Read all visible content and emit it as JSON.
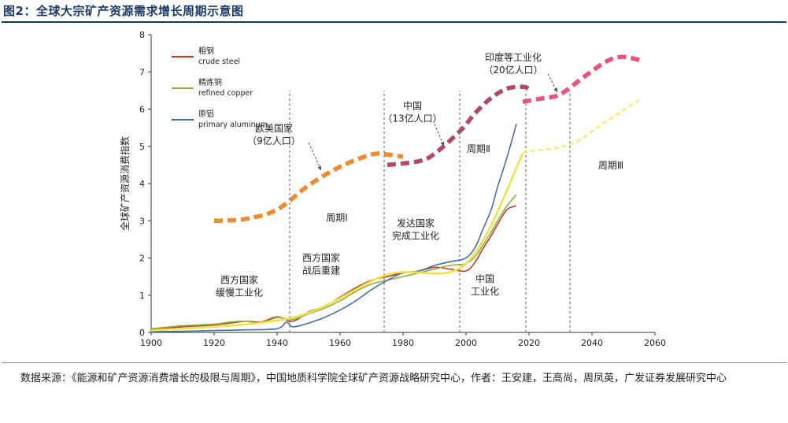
{
  "title": "图2：全球大宗矿产资源需求增长周期示意图",
  "source": "数据来源：《能源和矿产资源消费增长的极限与周期》，中国地质科学院全球矿产资源战略研究中心，作者：王安建，王高尚，周凤英，广发证券发展研究中心",
  "chart_data": {
    "type": "line",
    "ylabel": "全球矿产资源消费指数",
    "xlim": [
      1900,
      2060
    ],
    "ylim": [
      0,
      8
    ],
    "x_ticks": [
      1900,
      1920,
      1940,
      1960,
      1980,
      2000,
      2020,
      2040,
      2060
    ],
    "y_ticks": [
      0,
      1,
      2,
      3,
      4,
      5,
      6,
      7,
      8
    ],
    "legend_position": "top-left",
    "series": [
      {
        "name": "粗钢 crude steel",
        "label_cn": "粗钢",
        "label_en": "crude steel",
        "color": "#c0392b",
        "x": [
          1900,
          1910,
          1920,
          1925,
          1930,
          1935,
          1940,
          1945,
          1950,
          1955,
          1960,
          1965,
          1970,
          1975,
          1980,
          1985,
          1990,
          1995,
          2000,
          2003,
          2005,
          2008,
          2010,
          2013,
          2016
        ],
        "y": [
          0.08,
          0.15,
          0.2,
          0.25,
          0.3,
          0.28,
          0.42,
          0.3,
          0.55,
          0.7,
          0.95,
          1.2,
          1.4,
          1.5,
          1.6,
          1.65,
          1.75,
          1.7,
          1.65,
          1.9,
          2.2,
          2.6,
          2.9,
          3.3,
          3.4
        ]
      },
      {
        "name": "精炼铜 refined copper",
        "label_cn": "精炼铜",
        "label_en": "refined copper",
        "color": "#8db040",
        "x": [
          1900,
          1910,
          1920,
          1925,
          1930,
          1935,
          1940,
          1945,
          1950,
          1955,
          1960,
          1965,
          1970,
          1975,
          1980,
          1985,
          1990,
          1995,
          2000,
          2003,
          2005,
          2008,
          2010,
          2013,
          2016
        ],
        "y": [
          0.1,
          0.18,
          0.22,
          0.28,
          0.3,
          0.25,
          0.4,
          0.35,
          0.5,
          0.65,
          0.85,
          1.1,
          1.3,
          1.4,
          1.5,
          1.6,
          1.7,
          1.8,
          1.85,
          2.05,
          2.3,
          2.7,
          3.0,
          3.4,
          3.7
        ]
      },
      {
        "name": "原铝 primary aluminum",
        "label_cn": "原铝",
        "label_en": "primary aluminum",
        "color": "#4a6fa5",
        "x": [
          1900,
          1910,
          1920,
          1930,
          1940,
          1943,
          1945,
          1950,
          1955,
          1960,
          1965,
          1970,
          1975,
          1980,
          1985,
          1990,
          1995,
          2000,
          2003,
          2005,
          2008,
          2010,
          2013,
          2016
        ],
        "y": [
          0.02,
          0.03,
          0.05,
          0.07,
          0.1,
          0.28,
          0.15,
          0.25,
          0.4,
          0.6,
          0.85,
          1.15,
          1.4,
          1.6,
          1.65,
          1.8,
          1.9,
          2.0,
          2.3,
          2.7,
          3.3,
          3.9,
          4.7,
          5.6
        ]
      },
      {
        "name": "trend",
        "color": "#f2e24a",
        "x": [
          1900,
          1945,
          1975,
          2000,
          2018
        ],
        "y": [
          0.05,
          0.4,
          1.55,
          1.85,
          4.8
        ]
      },
      {
        "name": "trend-future",
        "color": "#f8ec7a",
        "dashed": true,
        "x": [
          2018,
          2033,
          2045,
          2055
        ],
        "y": [
          4.85,
          5.05,
          5.7,
          6.25
        ]
      }
    ],
    "demand_waves": [
      {
        "color": "#ef8a2e",
        "x": [
          1920,
          1930,
          1940,
          1950,
          1960,
          1970,
          1975,
          1980
        ],
        "y": [
          3.0,
          3.05,
          3.3,
          3.95,
          4.45,
          4.78,
          4.78,
          4.72
        ]
      },
      {
        "color": "#b04a6c",
        "x": [
          1975,
          1985,
          1990,
          1998,
          2003,
          2008,
          2013,
          2018,
          2020
        ],
        "y": [
          4.5,
          4.6,
          4.8,
          5.4,
          5.9,
          6.3,
          6.55,
          6.6,
          6.55
        ]
      },
      {
        "color": "#e8547c",
        "x": [
          2018,
          2025,
          2030,
          2038,
          2045,
          2050,
          2056
        ],
        "y": [
          6.2,
          6.3,
          6.4,
          6.9,
          7.3,
          7.4,
          7.3
        ]
      }
    ],
    "dividers": [
      1944,
      1974,
      1998,
      2019,
      2033
    ],
    "annotations": [
      {
        "id": "western-slow",
        "lines": [
          "西方国家",
          "缓慢工业化"
        ],
        "x": 1928,
        "y": 1.32
      },
      {
        "id": "western-rebuild",
        "lines": [
          "西方国家",
          "战后重建"
        ],
        "x": 1954,
        "y": 1.92
      },
      {
        "id": "developed-done",
        "lines": [
          "发达国家",
          "完成工业化"
        ],
        "x": 1984,
        "y": 2.85
      },
      {
        "id": "china-ind",
        "lines": [
          "中国",
          "工业化"
        ],
        "x": 2006,
        "y": 1.35
      },
      {
        "id": "cycle-1",
        "lines": [
          "周期Ⅰ"
        ],
        "x": 1959,
        "y": 3.0
      },
      {
        "id": "cycle-2",
        "lines": [
          "周期Ⅱ"
        ],
        "x": 2004,
        "y": 4.85
      },
      {
        "id": "cycle-3",
        "lines": [
          "周期Ⅲ"
        ],
        "x": 2046,
        "y": 4.4
      },
      {
        "id": "euro-us",
        "lines": [
          "欧美国家",
          "（9亿人口）"
        ],
        "x": 1939,
        "y": 5.4
      },
      {
        "id": "china-pop",
        "lines": [
          "中国",
          "（13亿人口）"
        ],
        "x": 1983,
        "y": 6.0
      },
      {
        "id": "india",
        "lines": [
          "印度等工业化",
          "（20亿人口）"
        ],
        "x": 2015,
        "y": 7.3
      }
    ],
    "arrows": [
      {
        "from": [
          1950,
          5.1
        ],
        "to": [
          1954,
          4.35
        ]
      },
      {
        "from": [
          1990,
          5.6
        ],
        "to": [
          1993,
          5.0
        ]
      },
      {
        "from": [
          2026,
          6.95
        ],
        "to": [
          2029,
          6.45
        ]
      }
    ]
  }
}
